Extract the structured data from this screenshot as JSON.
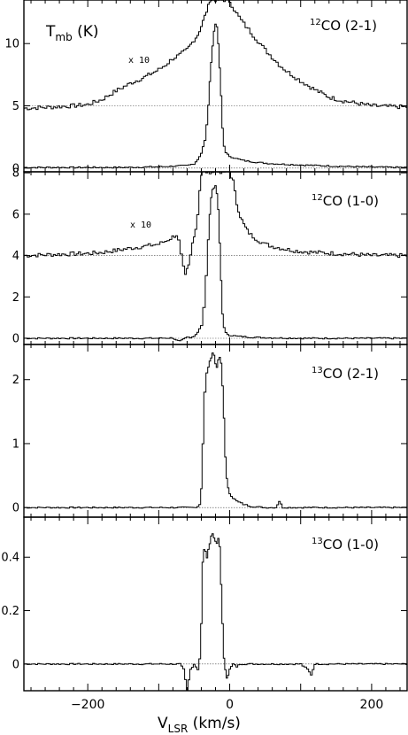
{
  "chart_data": [
    {
      "type": "line",
      "panel_label": "12CO (2-1)",
      "line_label": {
        "sup": "12",
        "main": "CO (2-1)"
      },
      "ylabel": {
        "main": "T",
        "sub": "mb",
        "unit": " (K)"
      },
      "scale_annotation": "x 10",
      "xlim": [
        -290,
        250
      ],
      "ylim": [
        -0.3,
        13.5
      ],
      "yticks": [
        0,
        5,
        10
      ],
      "baseline_levels": [
        0,
        5
      ],
      "series": [
        {
          "role": "profile",
          "x": [
            -290,
            -200,
            -150,
            -100,
            -80,
            -60,
            -50,
            -45,
            -40,
            -35,
            -32,
            -30,
            -28,
            -26,
            -24,
            -22,
            -20,
            -18,
            -16,
            -14,
            -12,
            -10,
            -8,
            -5,
            0,
            10,
            20,
            40,
            60,
            100,
            150,
            200,
            250
          ],
          "y": [
            0.05,
            0.05,
            0.05,
            0.1,
            0.15,
            0.2,
            0.35,
            0.7,
            1.2,
            2.2,
            3.5,
            5.0,
            7.0,
            8.5,
            9.8,
            11.0,
            11.6,
            11.3,
            10.0,
            8.0,
            5.8,
            3.2,
            1.8,
            1.2,
            0.95,
            0.75,
            0.6,
            0.45,
            0.35,
            0.25,
            0.15,
            0.08,
            0.05
          ]
        },
        {
          "role": "x10",
          "x": [
            -290,
            -250,
            -220,
            -200,
            -180,
            -160,
            -140,
            -120,
            -100,
            -90,
            -80,
            -70,
            -60,
            -55,
            -50,
            -45,
            -40,
            -35,
            -30,
            -28,
            -26,
            -24,
            -22,
            -20,
            -18,
            -16,
            -14,
            -12,
            -10,
            -5,
            0,
            10,
            20,
            30,
            40,
            50,
            60,
            70,
            80,
            90,
            100,
            120,
            140,
            160,
            180,
            200,
            220,
            250
          ],
          "y": [
            4.8,
            4.9,
            5.0,
            5.1,
            5.5,
            6.2,
            6.8,
            7.3,
            7.9,
            8.3,
            8.8,
            9.1,
            9.5,
            9.9,
            10.3,
            10.7,
            11.4,
            12.2,
            13.0,
            13.5,
            13.5,
            13.5,
            13.5,
            13.5,
            13.5,
            13.5,
            13.5,
            13.5,
            13.5,
            13.5,
            13.4,
            12.4,
            11.6,
            10.9,
            10.2,
            9.5,
            8.9,
            8.3,
            7.8,
            7.4,
            7.0,
            6.3,
            5.7,
            5.4,
            5.2,
            5.0,
            4.95,
            4.9
          ]
        }
      ]
    },
    {
      "type": "line",
      "panel_label": "12CO (1-0)",
      "line_label": {
        "sup": "12",
        "main": "CO (1-0)"
      },
      "scale_annotation": "x 10",
      "xlim": [
        -290,
        250
      ],
      "ylim": [
        -0.3,
        8.05
      ],
      "yticks": [
        0,
        2,
        4,
        6,
        8
      ],
      "baseline_levels": [
        0,
        4
      ],
      "series": [
        {
          "role": "profile",
          "x": [
            -290,
            -150,
            -100,
            -80,
            -75,
            -70,
            -65,
            -60,
            -55,
            -50,
            -45,
            -40,
            -36,
            -33,
            -30,
            -28,
            -26,
            -24,
            -22,
            -20,
            -18,
            -16,
            -14,
            -12,
            -10,
            -8,
            -5,
            0,
            10,
            30,
            60,
            100,
            150,
            200,
            250
          ],
          "y": [
            0.0,
            0.0,
            0.0,
            0.02,
            -0.1,
            -0.15,
            -0.05,
            0.05,
            0.05,
            0.1,
            0.3,
            0.6,
            1.5,
            3.0,
            4.8,
            6.0,
            6.8,
            7.2,
            7.3,
            7.35,
            7.0,
            6.2,
            4.6,
            2.8,
            1.2,
            0.5,
            0.25,
            0.15,
            0.1,
            0.05,
            0.02,
            0.0,
            0.0,
            0.0,
            0.0
          ]
        },
        {
          "role": "x10",
          "x": [
            -290,
            -250,
            -200,
            -180,
            -160,
            -140,
            -120,
            -110,
            -100,
            -90,
            -80,
            -75,
            -72,
            -68,
            -65,
            -62,
            -60,
            -58,
            -55,
            -52,
            -50,
            -48,
            -45,
            -42,
            -40,
            -38,
            -35,
            -30,
            -28,
            -24,
            -20,
            -16,
            -12,
            -10,
            -8,
            -5,
            0,
            5,
            10,
            15,
            20,
            25,
            30,
            40,
            50,
            60,
            80,
            100,
            120,
            150,
            180,
            200,
            250
          ],
          "y": [
            4.0,
            4.05,
            4.1,
            4.15,
            4.25,
            4.35,
            4.45,
            4.5,
            4.55,
            4.7,
            4.9,
            5.0,
            4.7,
            4.0,
            3.4,
            3.0,
            3.3,
            3.5,
            4.0,
            4.6,
            5.0,
            5.3,
            6.0,
            7.2,
            7.9,
            8.05,
            8.05,
            8.05,
            8.05,
            8.05,
            8.05,
            8.05,
            8.05,
            8.05,
            8.05,
            8.05,
            8.05,
            7.6,
            6.5,
            5.9,
            5.5,
            5.2,
            5.0,
            4.75,
            4.55,
            4.45,
            4.3,
            4.2,
            4.15,
            4.1,
            4.05,
            4.0,
            4.0
          ]
        }
      ]
    },
    {
      "type": "line",
      "panel_label": "13CO (2-1)",
      "line_label": {
        "sup": "13",
        "main": "CO (2-1)"
      },
      "xlim": [
        -290,
        250
      ],
      "ylim": [
        -0.15,
        2.55
      ],
      "yticks": [
        0,
        1,
        2
      ],
      "baseline_levels": [
        0
      ],
      "series": [
        {
          "role": "profile",
          "x": [
            -290,
            -150,
            -100,
            -60,
            -50,
            -45,
            -42,
            -40,
            -38,
            -35,
            -32,
            -30,
            -28,
            -26,
            -24,
            -22,
            -20,
            -18,
            -16,
            -14,
            -12,
            -10,
            -8,
            -6,
            -4,
            -2,
            0,
            5,
            10,
            20,
            30,
            50,
            65,
            70,
            75,
            100,
            150,
            200,
            250
          ],
          "y": [
            0.0,
            0.0,
            0.0,
            0.0,
            0.0,
            0.02,
            0.05,
            0.3,
            1.0,
            1.8,
            2.1,
            2.2,
            2.28,
            2.35,
            2.42,
            2.38,
            2.25,
            2.2,
            2.3,
            2.35,
            2.25,
            1.9,
            1.4,
            0.8,
            0.45,
            0.3,
            0.22,
            0.15,
            0.1,
            0.05,
            0.02,
            0.0,
            0.0,
            0.1,
            0.0,
            0.0,
            0.0,
            0.0,
            0.0
          ]
        }
      ]
    },
    {
      "type": "line",
      "panel_label": "13CO (1-0)",
      "line_label": {
        "sup": "13",
        "main": "CO (1-0)"
      },
      "xlabel": {
        "main": "V",
        "sub": "LSR",
        "unit": " (km/s)"
      },
      "xticks": [
        -200,
        0,
        200
      ],
      "xlim": [
        -290,
        250
      ],
      "ylim": [
        -0.1,
        0.55
      ],
      "yticks": [
        0,
        0.2,
        0.4
      ],
      "baseline_levels": [
        0
      ],
      "series": [
        {
          "role": "profile",
          "x": [
            -290,
            -150,
            -100,
            -80,
            -70,
            -65,
            -62,
            -60,
            -55,
            -50,
            -45,
            -42,
            -40,
            -38,
            -36,
            -34,
            -32,
            -30,
            -28,
            -26,
            -24,
            -22,
            -20,
            -18,
            -16,
            -14,
            -12,
            -10,
            -8,
            -6,
            -4,
            -2,
            0,
            5,
            10,
            15,
            20,
            40,
            60,
            100,
            110,
            115,
            120,
            150,
            200,
            250
          ],
          "y": [
            0.0,
            0.0,
            0.0,
            0.0,
            0.0,
            -0.02,
            -0.06,
            -0.1,
            -0.02,
            0.0,
            -0.02,
            0.02,
            0.15,
            0.38,
            0.43,
            0.42,
            0.4,
            0.43,
            0.45,
            0.48,
            0.49,
            0.47,
            0.46,
            0.45,
            0.47,
            0.44,
            0.3,
            0.15,
            0.02,
            -0.02,
            -0.05,
            -0.04,
            -0.02,
            0.0,
            -0.01,
            0.0,
            0.0,
            0.0,
            0.0,
            0.0,
            -0.02,
            -0.04,
            0.0,
            0.0,
            0.0,
            0.0
          ]
        }
      ]
    }
  ]
}
